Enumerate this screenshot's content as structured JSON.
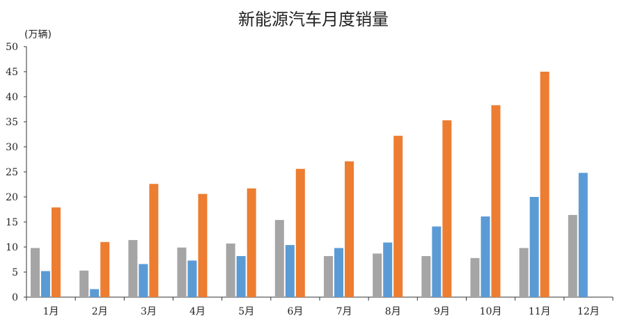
{
  "chart_data": {
    "type": "bar",
    "title": "新能源汽车月度销量",
    "unit_label": "(万辆)",
    "categories": [
      "1月",
      "2月",
      "3月",
      "4月",
      "5月",
      "6月",
      "7月",
      "8月",
      "9月",
      "10月",
      "11月",
      "12月"
    ],
    "series": [
      {
        "color": "#a5a5a5",
        "values": [
          9.8,
          5.3,
          11.4,
          9.9,
          10.7,
          15.4,
          8.2,
          8.7,
          8.2,
          7.8,
          9.8,
          16.4
        ]
      },
      {
        "color": "#5b9bd5",
        "values": [
          5.2,
          1.6,
          6.6,
          7.3,
          8.2,
          10.4,
          9.8,
          10.9,
          14.1,
          16.1,
          20.0,
          24.8
        ]
      },
      {
        "color": "#ed7d31",
        "values": [
          17.9,
          11.0,
          22.6,
          20.6,
          21.7,
          25.6,
          27.1,
          32.2,
          35.3,
          38.3,
          45.0,
          null
        ]
      }
    ],
    "ylim": [
      0,
      50
    ],
    "yticks": [
      0,
      5,
      10,
      15,
      20,
      25,
      30,
      35,
      40,
      45,
      50
    ],
    "grid": false,
    "legend": "none"
  }
}
